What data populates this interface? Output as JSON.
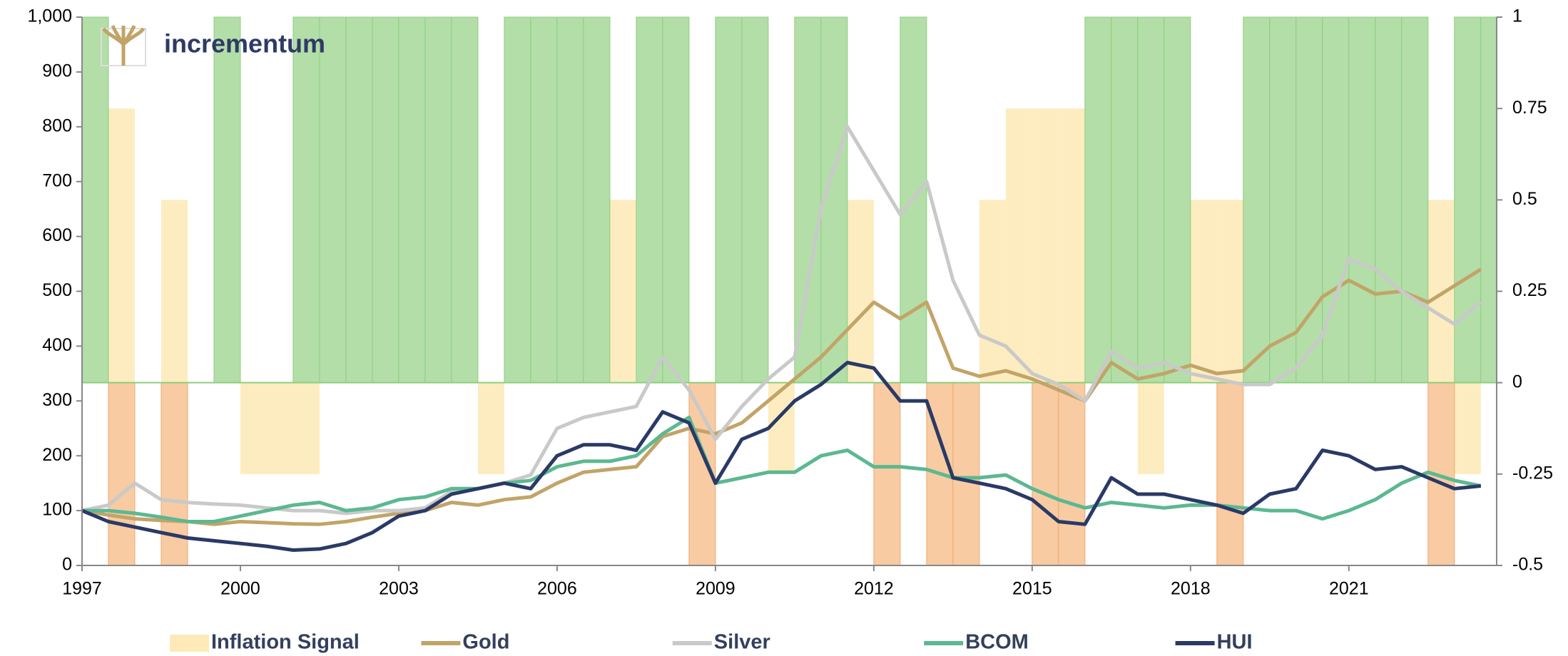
{
  "logo": "incrementum",
  "chart_data": {
    "type": "line",
    "x": [
      1997,
      1997.5,
      1998,
      1998.5,
      1999,
      1999.5,
      2000,
      2000.5,
      2001,
      2001.5,
      2002,
      2002.5,
      2003,
      2003.5,
      2004,
      2004.5,
      2005,
      2005.5,
      2006,
      2006.5,
      2007,
      2007.5,
      2008,
      2008.5,
      2009,
      2009.5,
      2010,
      2010.5,
      2011,
      2011.5,
      2012,
      2012.5,
      2013,
      2013.5,
      2014,
      2014.5,
      2015,
      2015.5,
      2016,
      2016.5,
      2017,
      2017.5,
      2018,
      2018.5,
      2019,
      2019.5,
      2020,
      2020.5,
      2021,
      2021.5,
      2022,
      2022.5,
      2023,
      2023.5
    ],
    "xlim": [
      1997,
      2023.8
    ],
    "xticks": [
      1997,
      2000,
      2003,
      2006,
      2009,
      2012,
      2015,
      2018,
      2021
    ],
    "ylim": [
      0,
      1000
    ],
    "yticks": [
      0,
      100,
      200,
      300,
      400,
      500,
      600,
      700,
      800,
      900,
      {
        "value": 1000,
        "label": "1,000"
      }
    ],
    "y2lim": [
      -0.5,
      1
    ],
    "y2ticks": [
      -0.5,
      -0.25,
      0,
      0.25,
      0.5,
      0.75,
      1
    ],
    "series": [
      {
        "name": "Inflation Signal",
        "type": "bar",
        "axis": "y2",
        "color": "#fdeab8",
        "values": [
          0.75,
          0.75,
          0,
          0.5,
          0,
          0.75,
          -0.25,
          -0.25,
          -0.25,
          0.5,
          0.5,
          0,
          0,
          0,
          0,
          -0.25,
          0,
          0.5,
          0,
          0.5,
          0.5,
          0,
          0,
          0,
          0,
          0,
          -0.25,
          0.5,
          0.25,
          0.5,
          0,
          0,
          0,
          0,
          0.5,
          0.75,
          0.75,
          0.75,
          0,
          0.5,
          -0.25,
          0.75,
          0.5,
          0.5,
          0,
          0.5,
          0.5,
          0.5,
          0.75,
          0.75,
          0.5,
          0.5,
          -0.25,
          0.75
        ]
      },
      {
        "type": "bar",
        "axis": "y2",
        "color": "#b3dea8",
        "negative_color": "#f8cba2",
        "values": [
          1,
          -0.5,
          0,
          -0.5,
          0,
          1,
          0,
          0,
          1,
          1,
          1,
          1,
          1,
          1,
          1,
          0,
          1,
          1,
          1,
          1,
          0,
          1,
          1,
          -0.5,
          1,
          1,
          0,
          1,
          1,
          0,
          -0.5,
          1,
          -0.5,
          -0.5,
          0,
          0,
          -0.5,
          -0.5,
          1,
          1,
          1,
          1,
          0,
          -0.5,
          1,
          1,
          1,
          1,
          1,
          1,
          1,
          -0.5,
          1,
          1
        ]
      },
      {
        "name": "Gold",
        "color": "#c2a468",
        "values": [
          100,
          92,
          85,
          82,
          80,
          75,
          80,
          78,
          76,
          75,
          80,
          88,
          95,
          100,
          115,
          110,
          120,
          125,
          150,
          170,
          175,
          180,
          235,
          250,
          240,
          260,
          300,
          340,
          380,
          430,
          480,
          450,
          480,
          360,
          345,
          355,
          340,
          320,
          300,
          370,
          340,
          350,
          365,
          350,
          355,
          400,
          425,
          490,
          520,
          495,
          500,
          480,
          510,
          540
        ]
      },
      {
        "name": "Silver",
        "color": "#c9c9c9",
        "values": [
          100,
          110,
          150,
          120,
          115,
          112,
          110,
          105,
          100,
          100,
          95,
          100,
          100,
          105,
          135,
          140,
          150,
          165,
          250,
          270,
          280,
          290,
          380,
          320,
          230,
          290,
          340,
          380,
          650,
          800,
          720,
          640,
          700,
          520,
          420,
          400,
          350,
          330,
          300,
          390,
          360,
          370,
          350,
          340,
          330,
          330,
          360,
          420,
          560,
          540,
          500,
          470,
          440,
          480
        ]
      },
      {
        "name": "BCOM",
        "color": "#5cb891",
        "values": [
          100,
          100,
          95,
          88,
          80,
          80,
          90,
          100,
          110,
          115,
          100,
          105,
          120,
          125,
          140,
          140,
          150,
          155,
          180,
          190,
          190,
          200,
          240,
          270,
          150,
          160,
          170,
          170,
          200,
          210,
          180,
          180,
          175,
          160,
          160,
          165,
          140,
          120,
          105,
          115,
          110,
          105,
          110,
          110,
          105,
          100,
          100,
          85,
          100,
          120,
          150,
          170,
          155,
          145
        ]
      },
      {
        "name": "HUI",
        "color": "#2a3a66",
        "values": [
          100,
          80,
          70,
          60,
          50,
          45,
          40,
          35,
          28,
          30,
          40,
          60,
          90,
          100,
          130,
          140,
          150,
          140,
          200,
          220,
          220,
          210,
          280,
          260,
          150,
          230,
          250,
          300,
          330,
          370,
          360,
          300,
          300,
          160,
          150,
          140,
          120,
          80,
          75,
          160,
          130,
          130,
          120,
          110,
          95,
          130,
          140,
          210,
          200,
          175,
          180,
          160,
          140,
          145
        ]
      }
    ]
  }
}
